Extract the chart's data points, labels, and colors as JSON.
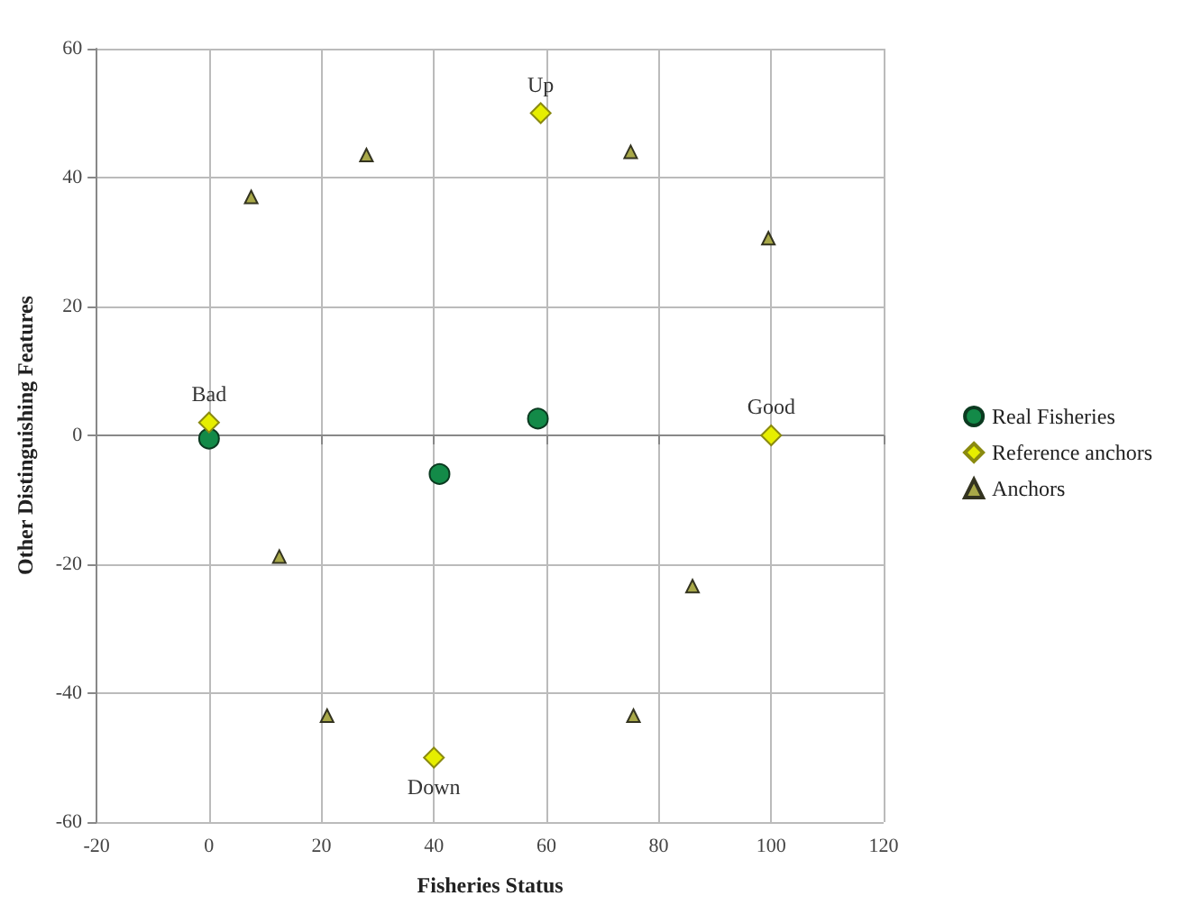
{
  "chart_data": {
    "type": "scatter",
    "xlabel": "Fisheries Status",
    "ylabel": "Other Distinguishing Features",
    "xlim": [
      -20,
      120
    ],
    "xticks": [
      -20,
      0,
      20,
      40,
      60,
      80,
      100,
      120
    ],
    "ylim": [
      -60,
      60
    ],
    "yticks": [
      -60,
      -40,
      -20,
      0,
      20,
      40,
      60
    ],
    "grid": true,
    "legend": "right",
    "series": [
      {
        "name": "Real Fisheries",
        "color": "#138a48",
        "marker": "circle",
        "x": [
          0,
          58.5,
          41
        ],
        "values": [
          -0.5,
          2.6,
          -6
        ]
      },
      {
        "name": "Reference anchors",
        "color": "#e6ee00",
        "marker": "diamond",
        "x": [
          0,
          59,
          100,
          40
        ],
        "values": [
          2,
          50,
          0,
          -50
        ]
      },
      {
        "name": "Anchors",
        "color": "#a8a848",
        "marker": "triangle",
        "x": [
          7.5,
          28,
          75,
          99.5,
          12.5,
          86,
          21,
          75.5
        ],
        "values": [
          37,
          43.5,
          44,
          30.6,
          -18.8,
          -23.4,
          -43.5,
          -43.5
        ]
      }
    ],
    "annotations": [
      {
        "text": "Bad",
        "x": 0,
        "y": 2
      },
      {
        "text": "Up",
        "x": 59,
        "y": 50
      },
      {
        "text": "Good",
        "x": 100,
        "y": 0
      },
      {
        "text": "Down",
        "x": 40,
        "y": -50
      }
    ]
  }
}
